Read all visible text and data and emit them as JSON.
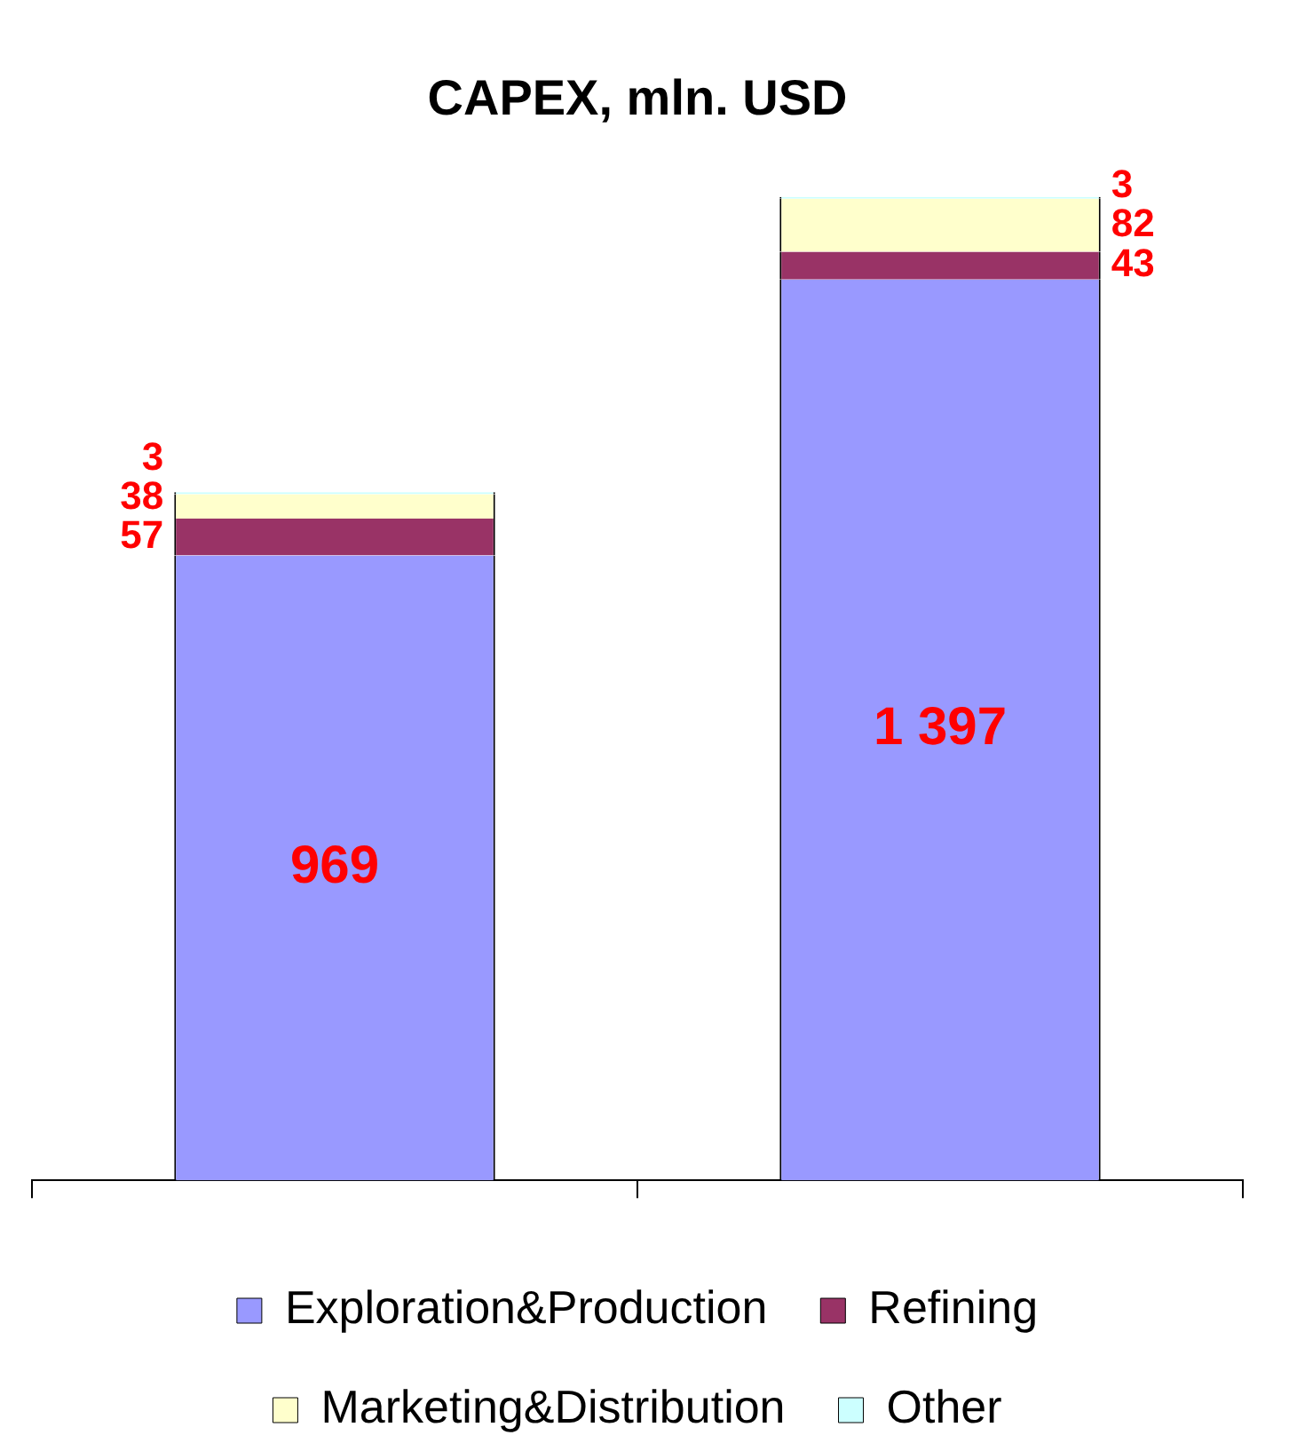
{
  "chart_data": {
    "type": "bar",
    "title": "CAPEX, mln. USD",
    "categories": [
      null,
      null
    ],
    "stacked": true,
    "data_labels": true,
    "legend": "bottom",
    "grid": false,
    "series": [
      {
        "name": "Exploration&Production",
        "color": "#9999ff",
        "values": [
          969,
          1397
        ],
        "value_labels": [
          "969",
          "1 397"
        ]
      },
      {
        "name": "Refining",
        "color": "#993366",
        "values": [
          57,
          43
        ]
      },
      {
        "name": "Marketing&Distribution",
        "color": "#ffffcc",
        "values": [
          38,
          82
        ]
      },
      {
        "name": "Other",
        "color": "#ccffff",
        "values": [
          3,
          3
        ]
      }
    ]
  }
}
